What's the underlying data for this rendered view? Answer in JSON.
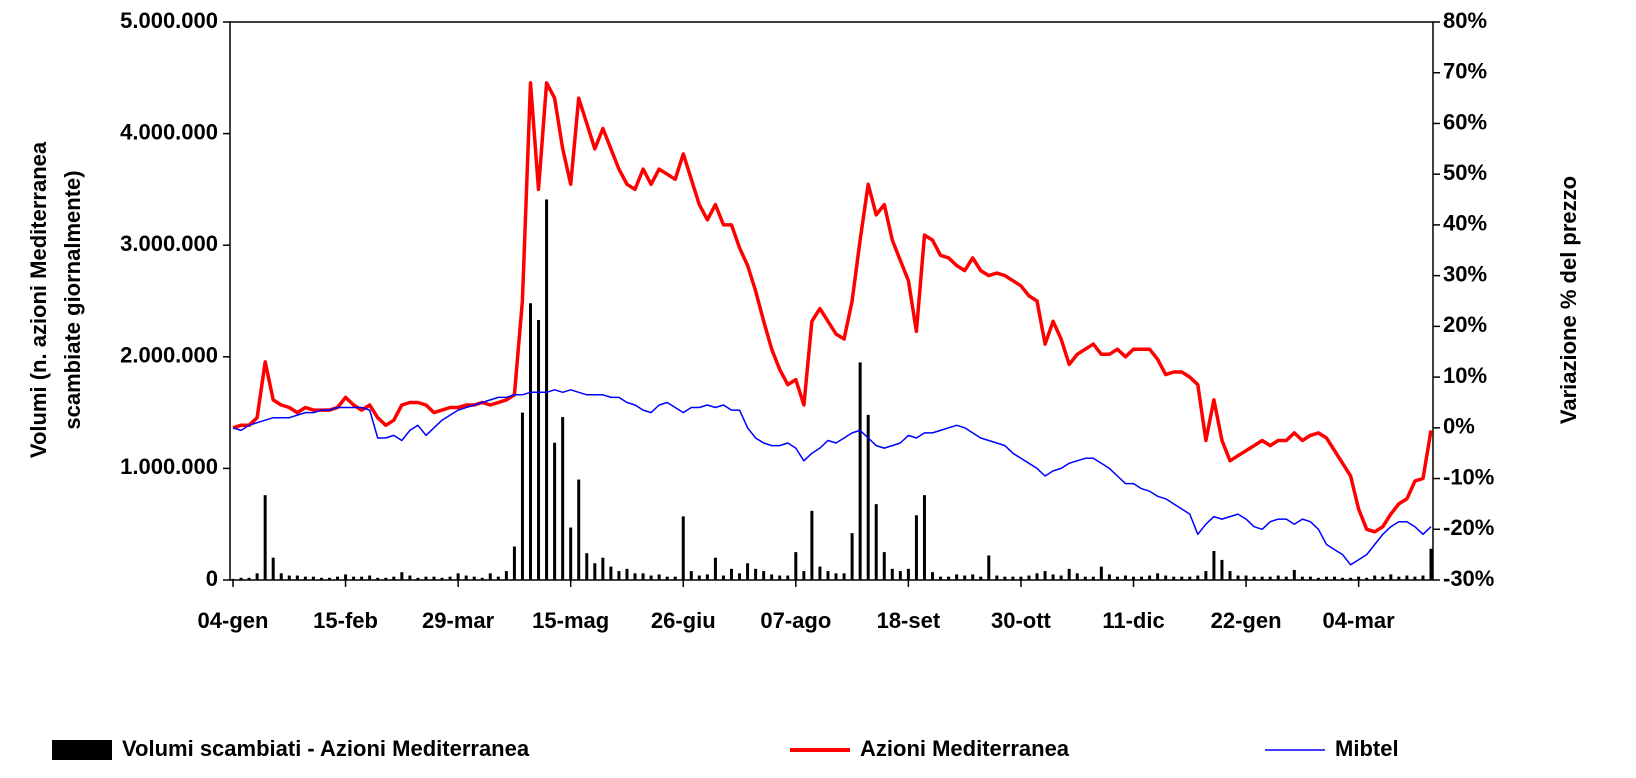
{
  "chart_data": {
    "type": "combo",
    "y_label": [
      "Volumi (n. azioni Mediterranea",
      "scambiate giornalmente)"
    ],
    "y2_label": "Variazione % del prezzo",
    "categories": [
      "04-gen",
      null,
      null,
      null,
      null,
      null,
      null,
      null,
      null,
      null,
      null,
      null,
      null,
      null,
      "15-feb",
      null,
      null,
      null,
      null,
      null,
      null,
      null,
      null,
      null,
      null,
      null,
      null,
      null,
      "29-mar",
      null,
      null,
      null,
      null,
      null,
      null,
      null,
      null,
      null,
      null,
      null,
      null,
      null,
      "15-mag",
      null,
      null,
      null,
      null,
      null,
      null,
      null,
      null,
      null,
      null,
      null,
      null,
      null,
      "26-giu",
      null,
      null,
      null,
      null,
      null,
      null,
      null,
      null,
      null,
      null,
      null,
      null,
      null,
      "07-ago",
      null,
      null,
      null,
      null,
      null,
      null,
      null,
      null,
      null,
      null,
      null,
      null,
      null,
      "18-set",
      null,
      null,
      null,
      null,
      null,
      null,
      null,
      null,
      null,
      null,
      null,
      null,
      null,
      "30-ott",
      null,
      null,
      null,
      null,
      null,
      null,
      null,
      null,
      null,
      null,
      null,
      null,
      null,
      "11-dic",
      null,
      null,
      null,
      null,
      null,
      null,
      null,
      null,
      null,
      null,
      null,
      null,
      null,
      "22-gen",
      null,
      null,
      null,
      null,
      null,
      null,
      null,
      null,
      null,
      null,
      null,
      null,
      null,
      "04-mar",
      null,
      null,
      null,
      null,
      null,
      null,
      null,
      null,
      null
    ],
    "series": [
      {
        "name": "Volumi scambiati - Azioni Mediterranea",
        "type": "bar",
        "axis": "y",
        "color": "#000000",
        "values": [
          10000,
          20000,
          20000,
          60000,
          760000,
          200000,
          60000,
          40000,
          40000,
          30000,
          30000,
          20000,
          20000,
          30000,
          50000,
          30000,
          30000,
          40000,
          20000,
          20000,
          30000,
          70000,
          40000,
          20000,
          30000,
          30000,
          20000,
          30000,
          60000,
          40000,
          30000,
          20000,
          60000,
          30000,
          80000,
          300000,
          1500000,
          2480000,
          2330000,
          3410000,
          1230000,
          1460000,
          470000,
          900000,
          240000,
          150000,
          200000,
          120000,
          80000,
          100000,
          60000,
          60000,
          40000,
          50000,
          30000,
          30000,
          570000,
          80000,
          40000,
          50000,
          200000,
          40000,
          100000,
          60000,
          150000,
          100000,
          80000,
          50000,
          40000,
          40000,
          250000,
          80000,
          620000,
          120000,
          80000,
          60000,
          60000,
          420000,
          1950000,
          1480000,
          680000,
          250000,
          100000,
          80000,
          100000,
          580000,
          760000,
          70000,
          30000,
          30000,
          50000,
          40000,
          50000,
          30000,
          220000,
          40000,
          30000,
          30000,
          30000,
          40000,
          60000,
          80000,
          50000,
          40000,
          100000,
          60000,
          30000,
          30000,
          120000,
          50000,
          30000,
          40000,
          30000,
          30000,
          40000,
          60000,
          40000,
          30000,
          30000,
          30000,
          40000,
          80000,
          260000,
          180000,
          80000,
          40000,
          40000,
          30000,
          30000,
          30000,
          40000,
          30000,
          90000,
          30000,
          30000,
          20000,
          30000,
          30000,
          20000,
          20000,
          30000,
          20000,
          40000,
          30000,
          50000,
          30000,
          40000,
          30000,
          40000,
          280000
        ]
      },
      {
        "name": "Azioni Mediterranea",
        "type": "line",
        "axis": "y2",
        "color": "#ff0000",
        "values": [
          0,
          0.5,
          0.5,
          2,
          13,
          5.5,
          4.5,
          4,
          3,
          4,
          3.5,
          3.5,
          3.5,
          4,
          6,
          4.5,
          3.5,
          4.5,
          2,
          0.5,
          1.5,
          4.5,
          5,
          5,
          4.5,
          3,
          3.5,
          4,
          4,
          4.5,
          4.5,
          5,
          4.5,
          5,
          5.5,
          6.5,
          25,
          68,
          47,
          68,
          65,
          55,
          48,
          65,
          60,
          55,
          59,
          55,
          51,
          48,
          47,
          51,
          48,
          51,
          50,
          49,
          54,
          49,
          44,
          41,
          44,
          40,
          40,
          35.5,
          32,
          27,
          21,
          15.5,
          11.5,
          8.5,
          9.5,
          4.5,
          21,
          23.5,
          21,
          18.5,
          17.5,
          25,
          37,
          48,
          42,
          44,
          37,
          33,
          29,
          19,
          38,
          37,
          34,
          33.5,
          32,
          31,
          33.5,
          31,
          30,
          30.5,
          30,
          29,
          28,
          26,
          25,
          16.5,
          21,
          17.5,
          12.5,
          14.5,
          15.5,
          16.5,
          14.5,
          14.5,
          15.5,
          14,
          15.5,
          15.5,
          15.5,
          13.5,
          10.5,
          11,
          11,
          10,
          8.5,
          -2.5,
          5.5,
          -2.5,
          -6.5,
          -5.5,
          -4.5,
          -3.5,
          -2.5,
          -3.5,
          -2.5,
          -2.5,
          -1,
          -2.5,
          -1.5,
          -1,
          -2,
          -4.5,
          -7,
          -9.5,
          -16,
          -20,
          -20.5,
          -19.5,
          -17,
          -15,
          -14,
          -10.5,
          -10,
          -0.5
        ]
      },
      {
        "name": "Mibtel",
        "type": "line",
        "axis": "y2",
        "color": "#0000ff",
        "values": [
          0,
          -0.5,
          0.5,
          1,
          1.5,
          2,
          2,
          2,
          2.5,
          3,
          3,
          3.5,
          3.5,
          4,
          4,
          4,
          4,
          3.5,
          -2,
          -2,
          -1.5,
          -2.5,
          -0.5,
          0.5,
          -1.5,
          0,
          1.5,
          2.5,
          3.5,
          4,
          4.5,
          5,
          5.5,
          6,
          6,
          6.5,
          6.5,
          7,
          7,
          7,
          7.5,
          7,
          7.5,
          7,
          6.5,
          6.5,
          6.5,
          6,
          6,
          5,
          4.5,
          3.5,
          3,
          4.5,
          5,
          4,
          3,
          4,
          4,
          4.5,
          4,
          4.5,
          3.5,
          3.5,
          0,
          -2,
          -3,
          -3.5,
          -3.5,
          -3,
          -4,
          -6.5,
          -5,
          -4,
          -2.5,
          -3,
          -2,
          -1,
          -0.5,
          -2,
          -3.5,
          -4,
          -3.5,
          -3,
          -1.5,
          -2,
          -1,
          -1,
          -0.5,
          0,
          0.5,
          0,
          -1,
          -2,
          -2.5,
          -3,
          -3.5,
          -5,
          -6,
          -7,
          -8,
          -9.5,
          -8.5,
          -8,
          -7,
          -6.5,
          -6,
          -6,
          -7,
          -8,
          -9.5,
          -11,
          -11,
          -12,
          -12.5,
          -13.5,
          -14,
          -15,
          -16,
          -17,
          -21,
          -19,
          -17.5,
          -18,
          -17.5,
          -17,
          -18,
          -19.5,
          -20,
          -18.5,
          -18,
          -18,
          -19,
          -18,
          -18.5,
          -20,
          -23,
          -24,
          -25,
          -27,
          -26,
          -25,
          -23,
          -21,
          -19.5,
          -18.5,
          -18.5,
          -19.5,
          -21,
          -19.5
        ]
      }
    ],
    "ylim": [
      0,
      5000000
    ],
    "yticks": [
      {
        "value": 0,
        "label": "0"
      },
      {
        "value": 1000000,
        "label": "1.000.000"
      },
      {
        "value": 2000000,
        "label": "2.000.000"
      },
      {
        "value": 3000000,
        "label": "3.000.000"
      },
      {
        "value": 4000000,
        "label": "4.000.000"
      },
      {
        "value": 5000000,
        "label": "5.000.000"
      }
    ],
    "y2lim": [
      -30,
      80
    ],
    "y2ticks": [
      {
        "value": -30,
        "label": "-30%"
      },
      {
        "value": -20,
        "label": "-20%"
      },
      {
        "value": -10,
        "label": "-10%"
      },
      {
        "value": 0,
        "label": "0%"
      },
      {
        "value": 10,
        "label": "10%"
      },
      {
        "value": 20,
        "label": "20%"
      },
      {
        "value": 30,
        "label": "30%"
      },
      {
        "value": 40,
        "label": "40%"
      },
      {
        "value": 50,
        "label": "50%"
      },
      {
        "value": 60,
        "label": "60%"
      },
      {
        "value": 70,
        "label": "70%"
      },
      {
        "value": 80,
        "label": "80%"
      }
    ],
    "grid": false,
    "legend": "bottom"
  }
}
